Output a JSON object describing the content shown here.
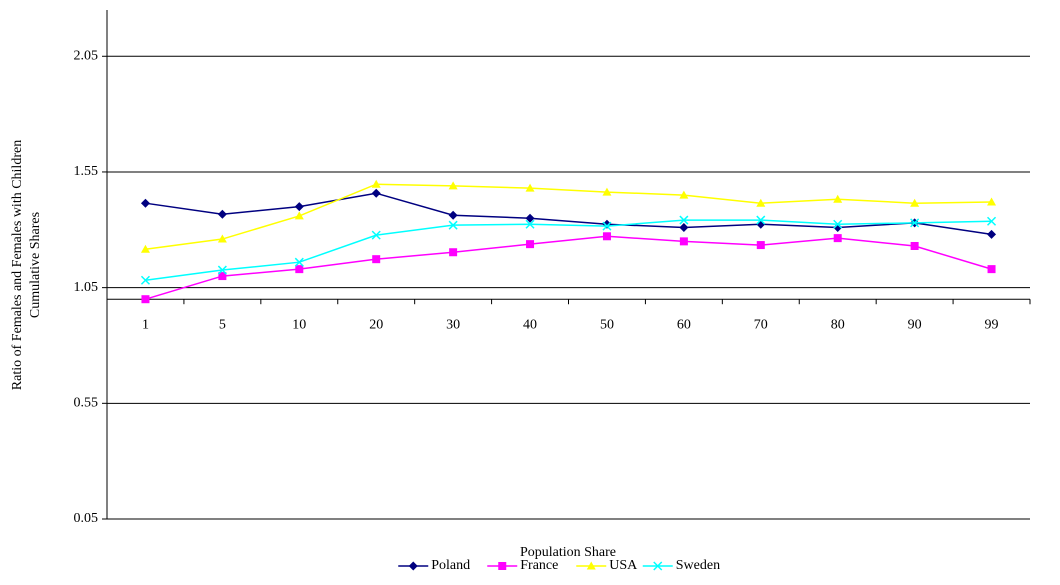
{
  "chart_data": {
    "type": "line",
    "y_label": [
      "Ratio of Females and Females with Children",
      "Cumulative Shares"
    ],
    "x_label": "Population Share",
    "categories": [
      "1",
      "5",
      "10",
      "20",
      "30",
      "40",
      "50",
      "60",
      "70",
      "80",
      "90",
      "99"
    ],
    "series": [
      {
        "name": "Poland",
        "color": "#000080",
        "marker": "diamond",
        "values": [
          1.415,
          1.367,
          1.4,
          1.458,
          1.363,
          1.35,
          1.324,
          1.31,
          1.324,
          1.31,
          1.33,
          1.28
        ]
      },
      {
        "name": "France",
        "color": "#ff00ff",
        "marker": "square",
        "values": [
          1.0,
          1.1,
          1.13,
          1.173,
          1.203,
          1.238,
          1.272,
          1.25,
          1.234,
          1.264,
          1.23,
          1.13
        ]
      },
      {
        "name": "USA",
        "color": "#ffff00",
        "marker": "triangle",
        "values": [
          1.216,
          1.26,
          1.36,
          1.497,
          1.49,
          1.48,
          1.463,
          1.45,
          1.415,
          1.432,
          1.415,
          1.42
        ]
      },
      {
        "name": "Sweden",
        "color": "#00ffff",
        "marker": "x",
        "values": [
          1.082,
          1.126,
          1.16,
          1.277,
          1.32,
          1.324,
          1.316,
          1.342,
          1.342,
          1.324,
          1.33,
          1.337
        ]
      }
    ],
    "ylim": [
      0.05,
      2.25
    ],
    "yticks": [
      0.05,
      0.55,
      1.05,
      1.55,
      2.05
    ],
    "x_axis_at": 1,
    "grid": true,
    "legend": "bottom"
  }
}
